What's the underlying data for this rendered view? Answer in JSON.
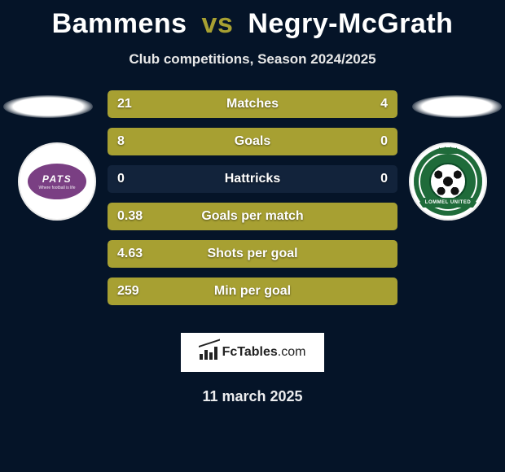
{
  "colors": {
    "bg": "#051428",
    "bar_track": "#12233b",
    "accent": "#a7a032",
    "left_badge_bg": "#7a3f83",
    "right_badge_ring": "#1f6b3a"
  },
  "header": {
    "player1": "Bammens",
    "vs": "vs",
    "player2": "Negry-McGrath",
    "subtitle": "Club competitions, Season 2024/2025"
  },
  "badges": {
    "left": {
      "text": "PATS",
      "sub": "Where football is life",
      "fill": "#7a3f83"
    },
    "right": {
      "ring": "#1f6b3a",
      "ribbon_text": "LOMMEL UNITED"
    }
  },
  "stats": [
    {
      "label": "Matches",
      "left_val": "21",
      "right_val": "4",
      "left_pct": 84,
      "right_pct": 16,
      "left_color": "#a7a032",
      "right_color": "#a7a032"
    },
    {
      "label": "Goals",
      "left_val": "8",
      "right_val": "0",
      "left_pct": 100,
      "right_pct": 0,
      "left_color": "#a7a032",
      "right_color": "#a7a032"
    },
    {
      "label": "Hattricks",
      "left_val": "0",
      "right_val": "0",
      "left_pct": 0,
      "right_pct": 0,
      "left_color": "#a7a032",
      "right_color": "#a7a032"
    },
    {
      "label": "Goals per match",
      "left_val": "0.38",
      "right_val": "",
      "left_pct": 100,
      "right_pct": 0,
      "left_color": "#a7a032",
      "right_color": "#a7a032"
    },
    {
      "label": "Shots per goal",
      "left_val": "4.63",
      "right_val": "",
      "left_pct": 100,
      "right_pct": 0,
      "left_color": "#a7a032",
      "right_color": "#a7a032"
    },
    {
      "label": "Min per goal",
      "left_val": "259",
      "right_val": "",
      "left_pct": 100,
      "right_pct": 0,
      "left_color": "#a7a032",
      "right_color": "#a7a032"
    }
  ],
  "brand": {
    "name_bold": "FcTables",
    "name_light": ".com"
  },
  "date": "11 march 2025"
}
